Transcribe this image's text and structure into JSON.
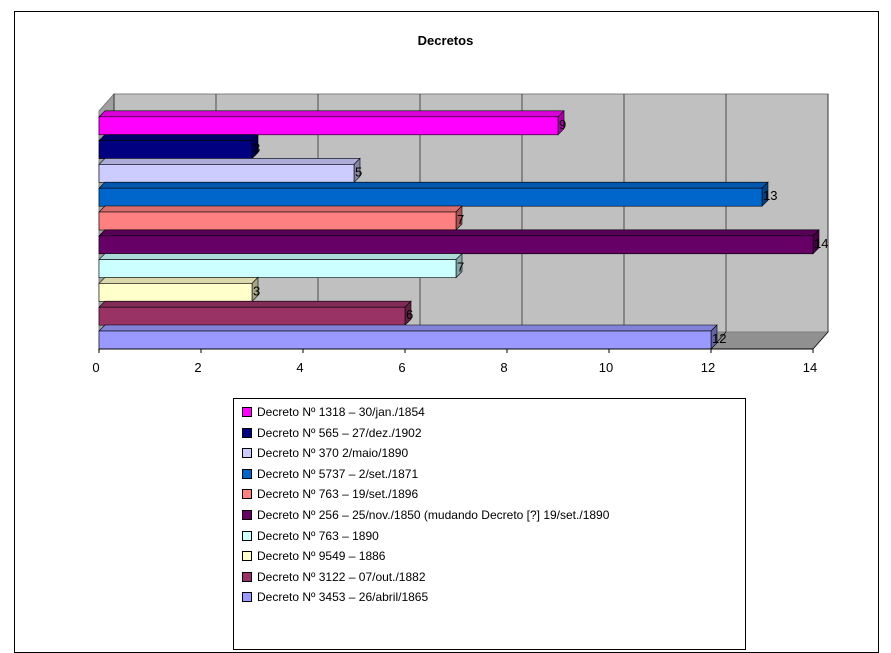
{
  "chart_data": {
    "type": "bar",
    "orientation": "horizontal",
    "three_d": true,
    "title": "Decretos",
    "xlim": [
      0,
      14
    ],
    "x_ticks": [
      "0",
      "2",
      "4",
      "6",
      "8",
      "10",
      "12",
      "14"
    ],
    "grid": true,
    "legend_position": "bottom",
    "series": [
      {
        "name": "Decreto Nº 1318 – 30/jan./1854",
        "value": 9,
        "label": "9",
        "color": "#ff00ff"
      },
      {
        "name": "Decreto Nº 565 – 27/dez./1902",
        "value": 3,
        "label": "3",
        "color": "#000080"
      },
      {
        "name": "Decreto Nº 370 2/maio/1890",
        "value": 5,
        "label": "5",
        "color": "#ccccff"
      },
      {
        "name": "Decreto Nº 5737 – 2/set./1871",
        "value": 13,
        "label": "13",
        "color": "#0066cc"
      },
      {
        "name": "Decreto Nº 763 – 19/set./1896",
        "value": 7,
        "label": "7",
        "color": "#ff8080"
      },
      {
        "name": "Decreto Nº 256 – 25/nov./1850 (mudando Decreto [?] 19/set./1890",
        "value": 14,
        "label": "14",
        "color": "#660066"
      },
      {
        "name": "Decreto Nº 763 – 1890",
        "value": 7,
        "label": "7",
        "color": "#ccffff"
      },
      {
        "name": "Decreto Nº 9549 – 1886",
        "value": 3,
        "label": "3",
        "color": "#ffffcc"
      },
      {
        "name": "Decreto Nº 3122 – 07/out./1882",
        "value": 6,
        "label": "6",
        "color": "#993366"
      },
      {
        "name": "Decreto Nº 3453 – 26/abril/1865",
        "value": 12,
        "label": "12",
        "color": "#9999ff"
      }
    ],
    "colors": {
      "wall": "#c0c0c0",
      "gridline": "#000000"
    }
  }
}
